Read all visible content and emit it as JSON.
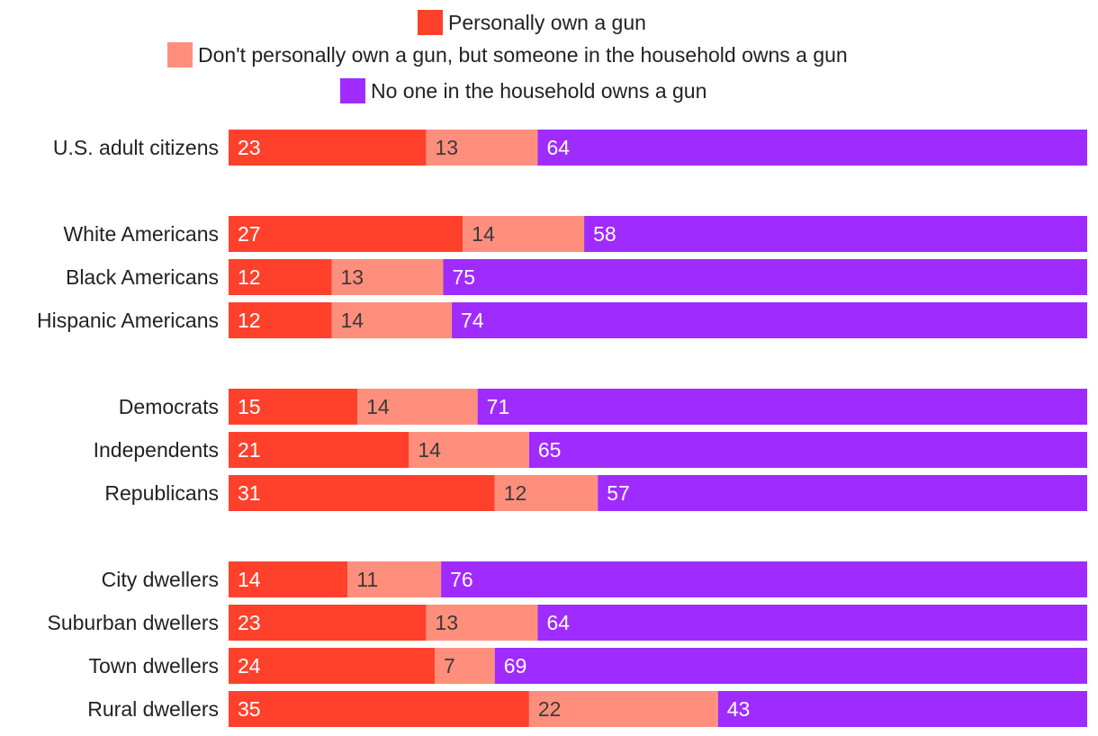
{
  "chart_data": {
    "type": "bar",
    "orientation": "horizontal",
    "stacked": true,
    "units": "percent",
    "xlim": [
      0,
      100
    ],
    "grid": false,
    "legend_position": "top-center",
    "title": "",
    "xlabel": "",
    "ylabel": "",
    "groups": [
      [
        "U.S. adult citizens"
      ],
      [
        "White Americans",
        "Black Americans",
        "Hispanic Americans"
      ],
      [
        "Democrats",
        "Independents",
        "Republicans"
      ],
      [
        "City dwellers",
        "Suburban dwellers",
        "Town dwellers",
        "Rural dwellers"
      ]
    ],
    "categories": [
      "U.S. adult citizens",
      "White Americans",
      "Black Americans",
      "Hispanic Americans",
      "Democrats",
      "Independents",
      "Republicans",
      "City dwellers",
      "Suburban dwellers",
      "Town dwellers",
      "Rural dwellers"
    ],
    "series": [
      {
        "name": "Personally own a gun",
        "color": "#ff412c",
        "label_color": "#ffffff",
        "values": [
          23,
          27,
          12,
          12,
          15,
          21,
          31,
          14,
          23,
          24,
          35
        ]
      },
      {
        "name": "Don't personally own a gun, but someone in the household owns a gun",
        "color": "#ff8f7c",
        "label_color": "#3a3a3a",
        "values": [
          13,
          14,
          13,
          14,
          14,
          14,
          12,
          11,
          13,
          7,
          22
        ]
      },
      {
        "name": "No one in the household owns a gun",
        "color": "#a02bff",
        "label_color": "#ffffff",
        "values": [
          64,
          58,
          75,
          74,
          71,
          65,
          57,
          76,
          64,
          69,
          43
        ]
      }
    ]
  }
}
